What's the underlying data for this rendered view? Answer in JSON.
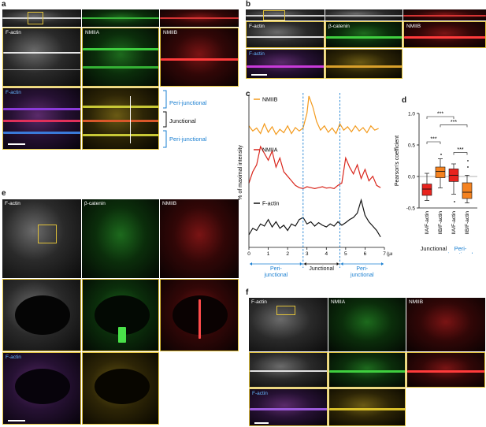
{
  "panel_labels": {
    "a": "a",
    "b": "b",
    "c": "c",
    "d": "d",
    "e": "e",
    "f": "f"
  },
  "channels": {
    "factin": "F-actin",
    "nmiia": "NMIIA",
    "nmiib": "NMIIB",
    "bcatenin": "β-catenin"
  },
  "panel_a": {
    "brackets": {
      "top": "Peri-junctional",
      "middle": "Junctional",
      "bottom": "Peri-junctional"
    }
  },
  "colors": {
    "nmiib_line": "#f39a1c",
    "nmiia_line": "#d9261c",
    "factin_line": "#111111",
    "junction_line": "#1a7fd1",
    "box_red": "#e8231e",
    "box_orange": "#f5821f"
  },
  "chart_data": [
    {
      "type": "line",
      "panel": "c",
      "ylabel": "% of maximal intensity",
      "xlabel": "",
      "x_unit": "(µm)",
      "xlim": [
        0,
        7
      ],
      "xticks": [
        "0",
        "1",
        "2",
        "3",
        "4",
        "5",
        "6",
        "7"
      ],
      "regions": [
        "Peri-\njunctional",
        "Junctional",
        "Peri-\njunctional"
      ],
      "junction_boundaries": [
        2.8,
        4.7
      ],
      "series": [
        {
          "name": "NMIIB",
          "x": [
            0,
            0.2,
            0.4,
            0.6,
            0.8,
            1.0,
            1.2,
            1.4,
            1.6,
            1.8,
            2.0,
            2.2,
            2.4,
            2.6,
            2.8,
            3.0,
            3.1,
            3.3,
            3.5,
            3.7,
            3.9,
            4.1,
            4.3,
            4.5,
            4.7,
            4.9,
            5.1,
            5.3,
            5.5,
            5.7,
            5.9,
            6.1,
            6.3,
            6.5,
            6.7
          ],
          "y": [
            30,
            18,
            25,
            12,
            35,
            15,
            28,
            10,
            22,
            14,
            30,
            12,
            26,
            18,
            25,
            60,
            100,
            75,
            40,
            20,
            30,
            15,
            25,
            12,
            35,
            20,
            28,
            16,
            30,
            18,
            26,
            14,
            30,
            20,
            24
          ]
        },
        {
          "name": "NMIIA",
          "x": [
            0,
            0.2,
            0.4,
            0.6,
            0.8,
            1.0,
            1.2,
            1.4,
            1.6,
            1.8,
            2.0,
            2.2,
            2.4,
            2.6,
            2.8,
            3.0,
            3.2,
            3.4,
            3.6,
            3.8,
            4.0,
            4.2,
            4.4,
            4.6,
            4.8,
            5.0,
            5.2,
            5.4,
            5.6,
            5.8,
            6.0,
            6.2,
            6.4,
            6.6,
            6.8
          ],
          "y": [
            20,
            45,
            60,
            100,
            85,
            70,
            90,
            55,
            75,
            45,
            35,
            25,
            15,
            10,
            8,
            12,
            10,
            8,
            10,
            12,
            9,
            10,
            8,
            15,
            20,
            75,
            55,
            40,
            60,
            30,
            50,
            25,
            35,
            15,
            10
          ]
        },
        {
          "name": "F-actin",
          "x": [
            0,
            0.2,
            0.4,
            0.6,
            0.8,
            1.0,
            1.2,
            1.4,
            1.6,
            1.8,
            2.0,
            2.2,
            2.4,
            2.6,
            2.8,
            3.0,
            3.2,
            3.4,
            3.6,
            3.8,
            4.0,
            4.2,
            4.4,
            4.6,
            4.8,
            5.0,
            5.2,
            5.4,
            5.6,
            5.8,
            6.0,
            6.2,
            6.4,
            6.6,
            6.8
          ],
          "y": [
            20,
            35,
            30,
            45,
            40,
            55,
            38,
            50,
            35,
            42,
            30,
            45,
            40,
            55,
            60,
            45,
            50,
            40,
            48,
            42,
            38,
            45,
            40,
            50,
            42,
            48,
            55,
            60,
            70,
            100,
            65,
            50,
            40,
            30,
            15
          ]
        }
      ]
    },
    {
      "type": "box",
      "panel": "d",
      "ylabel": "Pearson's coefficient",
      "ylim": [
        -0.5,
        1.0
      ],
      "yticks": [
        "-0.5",
        "0.0",
        "0.5",
        "1.0"
      ],
      "categories": [
        "IIA/F-actin",
        "IIB/F-actin",
        "IIA/F-actin",
        "IIB/F-actin"
      ],
      "groups": [
        {
          "name": "Junctional",
          "categories": [
            0,
            1
          ]
        },
        {
          "name": "Peri-\njunctional",
          "categories": [
            2,
            3
          ]
        }
      ],
      "boxes": [
        {
          "min": -0.38,
          "q1": -0.3,
          "median": -0.2,
          "q3": -0.12,
          "max": 0.05,
          "color": "#e8231e",
          "outliers": []
        },
        {
          "min": -0.18,
          "q1": -0.02,
          "median": 0.08,
          "q3": 0.15,
          "max": 0.28,
          "color": "#f5821f",
          "outliers": [
            0.35
          ]
        },
        {
          "min": -0.28,
          "q1": -0.08,
          "median": 0.02,
          "q3": 0.12,
          "max": 0.2,
          "color": "#e8231e",
          "outliers": [
            -0.4
          ]
        },
        {
          "min": -0.42,
          "q1": -0.35,
          "median": -0.25,
          "q3": -0.1,
          "max": 0.02,
          "color": "#f5821f",
          "outliers": [
            0.15,
            0.25
          ]
        }
      ],
      "significance": [
        "***",
        "***",
        "***",
        "***"
      ]
    }
  ]
}
